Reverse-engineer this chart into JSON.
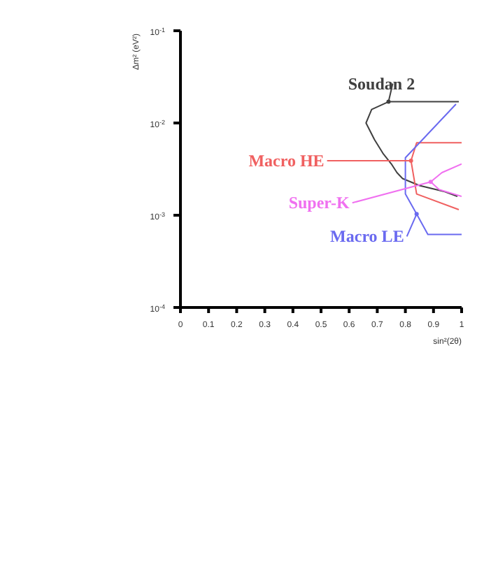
{
  "chart_data": {
    "type": "line",
    "xlabel": "sin²(2θ)",
    "ylabel": "Δm² (eV²)",
    "log": "y",
    "marker": "none",
    "legend": "right",
    "line_style": "solid",
    "xlim": [
      0,
      1
    ],
    "xticks": [
      0,
      0.1,
      0.2,
      0.3,
      0.4,
      0.5,
      0.6,
      0.7,
      0.8,
      0.9,
      1
    ],
    "ylim": [
      0.0001,
      0.1
    ],
    "yticks": [
      {
        "value": 0.0001,
        "label": "10$^{-4}$"
      },
      {
        "value": 0.001,
        "label": "10$^{-3}$"
      },
      {
        "value": 0.01,
        "label": "10$^{-2}$"
      },
      {
        "value": 0.1,
        "label": "10$^{-1}$"
      }
    ],
    "series": [
      {
        "name": "Soudan 2",
        "color": "#404040",
        "x": [
          0.99,
          0.74,
          0.68,
          0.66,
          0.69,
          0.72,
          0.75,
          0.77,
          0.79,
          0.85,
          0.94,
          0.985
        ],
        "values": [
          0.017,
          0.017,
          0.014,
          0.01,
          0.0066,
          0.0047,
          0.0036,
          0.0029,
          0.0025,
          0.0021,
          0.0018,
          0.0016
        ]
      },
      {
        "name": "Macro HE",
        "color": "#f06060",
        "x": [
          1,
          0.84,
          0.82,
          0.84,
          0.99
        ],
        "values": [
          0.0061,
          0.0061,
          0.0039,
          0.0017,
          0.00115
        ]
      },
      {
        "name": "Super-K",
        "color": "#f070f0",
        "x": [
          1,
          0.93,
          0.89,
          0.92,
          1
        ],
        "values": [
          0.0036,
          0.0029,
          0.0023,
          0.0019,
          0.0016
        ]
      },
      {
        "name": "Macro LE",
        "color": "#6a6af0",
        "x": [
          0.98,
          0.8,
          0.8,
          0.84,
          0.88,
          1
        ],
        "values": [
          0.016,
          0.0042,
          0.0017,
          0.00103,
          0.00062,
          0.00062
        ]
      }
    ]
  }
}
